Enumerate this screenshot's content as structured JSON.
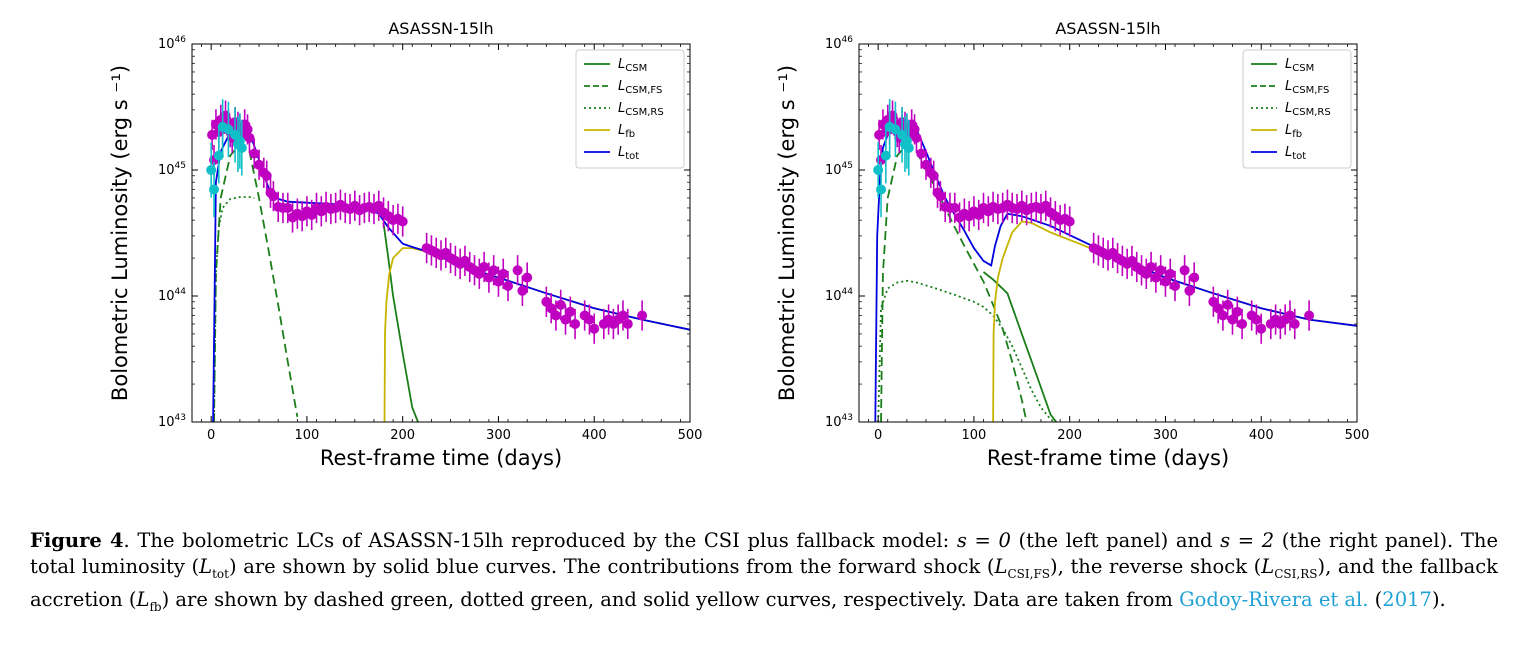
{
  "figure": {
    "chart_data": [
      {
        "type": "line",
        "title": "ASASSN-15lh",
        "xlabel": "Rest-frame time (days)",
        "ylabel": "Bolometric Luminosity (erg s ⁻¹)",
        "xlim": [
          -20,
          500
        ],
        "ylim": [
          1e+43,
          1e+46
        ],
        "yscale": "log",
        "xticks": [
          0,
          100,
          200,
          300,
          400,
          500
        ],
        "yticks": [
          1e+43,
          1e+44,
          1e+45,
          1e+46
        ],
        "ytick_labels": [
          "10^43",
          "10^44",
          "10^45",
          "10^46"
        ],
        "legend_location": "upper right",
        "legend": [
          "L_CSM",
          "L_CSM,FS",
          "L_CSM,RS",
          "L_fb",
          "L_tot"
        ],
        "series": [
          {
            "name": "L_CSM",
            "style": "solid",
            "color": "#1a7f1a",
            "x": [
              180,
              185,
              190,
              200,
              210,
              216
            ],
            "y": [
              3.8e+44,
              2e+44,
              1e+44,
              3.5e+43,
              1.3e+43,
              1e+43
            ]
          },
          {
            "name": "L_CSM,FS",
            "style": "dashed",
            "color": "#1a7f1a",
            "x": [
              3,
              5,
              10,
              20,
              30,
              40,
              50,
              60,
              70,
              80,
              90
            ],
            "y": [
              1e+43,
              1.5e+44,
              6e+44,
              1.3e+45,
              1.6e+45,
              1.4e+45,
              6e+44,
              2.3e+44,
              8.5e+43,
              3e+43,
              1.1e+43
            ]
          },
          {
            "name": "L_CSM,RS",
            "style": "dotted",
            "color": "#1a7f1a",
            "x": [
              3,
              5,
              8,
              12,
              20,
              30,
              40,
              45
            ],
            "y": [
              1e+43,
              1.5e+44,
              3.5e+44,
              5e+44,
              5.9e+44,
              6.1e+44,
              6.1e+44,
              6e+44
            ]
          },
          {
            "name": "L_fb",
            "style": "solid",
            "color": "#c8b400",
            "x": [
              181,
              181.5,
              183,
              186,
              190,
              200,
              210,
              230,
              260,
              300,
              350,
              400,
              450,
              500
            ],
            "y": [
              1e+43,
              5e+43,
              9e+43,
              1.5e+44,
              2e+44,
              2.4e+44,
              2.4e+44,
              2.2e+44,
              1.75e+44,
              1.4e+44,
              1.05e+44,
              8e+43,
              6.5e+43,
              5.4e+43
            ]
          },
          {
            "name": "L_tot",
            "style": "solid",
            "color": "#0000e0",
            "x": [
              2,
              5,
              10,
              20,
              30,
              40,
              50,
              60,
              70,
              80,
              100,
              120,
              140,
              160,
              175,
              185,
              200,
              210,
              230,
              260,
              300,
              350,
              400,
              450,
              500
            ],
            "y": [
              1e+43,
              8e+44,
              1.4e+45,
              2e+45,
              2.3e+45,
              2e+45,
              1.2e+45,
              7.2e+44,
              5.9e+44,
              5.6e+44,
              5.5e+44,
              5.4e+44,
              5.3e+44,
              5e+44,
              4.5e+44,
              3.5e+44,
              2.6e+44,
              2.45e+44,
              2.2e+44,
              1.75e+44,
              1.4e+44,
              1.05e+44,
              8e+43,
              6.5e+43,
              5.4e+43
            ]
          }
        ],
        "observations": [
          {
            "name": "magenta",
            "color": "#c000c0",
            "x": [
              1,
              3,
              5,
              8,
              10,
              12,
              15,
              18,
              20,
              22,
              25,
              28,
              30,
              32,
              35,
              38,
              40,
              45,
              50,
              55,
              58,
              62,
              65,
              70,
              75,
              80,
              85,
              90,
              95,
              100,
              105,
              110,
              115,
              120,
              125,
              130,
              135,
              140,
              145,
              150,
              155,
              160,
              165,
              170,
              175,
              180,
              185,
              190,
              195,
              200,
              225,
              230,
              235,
              240,
              245,
              250,
              255,
              260,
              265,
              270,
              275,
              280,
              285,
              290,
              295,
              300,
              305,
              310,
              320,
              325,
              330,
              350,
              355,
              360,
              365,
              370,
              375,
              380,
              390,
              395,
              400,
              410,
              415,
              420,
              425,
              430,
              435,
              450
            ],
            "y": [
              1.9e+45,
              1.2e+45,
              2.3e+45,
              2e+45,
              2.5e+45,
              2.1e+45,
              2.7e+45,
              2.3e+45,
              2e+45,
              1.8e+45,
              2.4e+45,
              2.2e+45,
              2.1e+45,
              1.9e+45,
              2.3e+45,
              2.1e+45,
              1.8e+45,
              1.35e+45,
              1.1e+45,
              9.5e+44,
              9e+44,
              6.6e+44,
              6.2e+44,
              5.1e+44,
              5e+44,
              5e+44,
              4.2e+44,
              4.5e+44,
              4.3e+44,
              4.7e+44,
              4.4e+44,
              5e+44,
              4.7e+44,
              5.1e+44,
              4.9e+44,
              5e+44,
              5.3e+44,
              5e+44,
              4.9e+44,
              5.2e+44,
              4.8e+44,
              5e+44,
              5.1e+44,
              4.9e+44,
              5.2e+44,
              4.6e+44,
              4.3e+44,
              4e+44,
              4.1e+44,
              3.9e+44,
              2.4e+44,
              2.3e+44,
              2.2e+44,
              2.1e+44,
              2.2e+44,
              2e+44,
              1.9e+44,
              1.8e+44,
              1.9e+44,
              1.7e+44,
              1.6e+44,
              1.5e+44,
              1.7e+44,
              1.4e+44,
              1.6e+44,
              1.3e+44,
              1.5e+44,
              1.2e+44,
              1.6e+44,
              1.1e+44,
              1.4e+44,
              9e+43,
              8e+43,
              7e+43,
              8.5e+43,
              6.5e+43,
              7.5e+43,
              6e+43,
              7e+43,
              6.5e+43,
              5.5e+43,
              6e+43,
              6.5e+43,
              6e+43,
              6.5e+43,
              7e+43,
              6e+43,
              7e+43
            ]
          },
          {
            "name": "cyan",
            "color": "#10c0c8",
            "x": [
              0,
              3,
              8,
              12,
              18,
              25,
              28,
              30,
              32
            ],
            "y": [
              1e+45,
              7e+44,
              1.3e+45,
              2.2e+45,
              2.1e+45,
              1.9e+45,
              1.6e+45,
              1.7e+45,
              1.5e+45
            ]
          }
        ]
      },
      {
        "type": "line",
        "title": "ASASSN-15lh",
        "xlabel": "Rest-frame time (days)",
        "ylabel": "Bolometric Luminosity (erg s ⁻¹)",
        "xlim": [
          -20,
          500
        ],
        "ylim": [
          1e+43,
          1e+46
        ],
        "yscale": "log",
        "xticks": [
          0,
          100,
          200,
          300,
          400,
          500
        ],
        "yticks": [
          1e+43,
          1e+44,
          1e+45,
          1e+46
        ],
        "ytick_labels": [
          "10^43",
          "10^44",
          "10^45",
          "10^46"
        ],
        "legend_location": "upper right",
        "legend": [
          "L_CSM",
          "L_CSM,FS",
          "L_CSM,RS",
          "L_fb",
          "L_tot"
        ],
        "series": [
          {
            "name": "L_CSM",
            "style": "solid",
            "color": "#1a7f1a",
            "x": [
              110,
              120,
              135,
              150,
              165,
              180,
              186
            ],
            "y": [
              1.55e+44,
              1.35e+44,
              1.05e+44,
              5e+43,
              2.4e+43,
              1.15e+43,
              1e+43
            ]
          },
          {
            "name": "L_CSM,FS",
            "style": "dashed",
            "color": "#1a7f1a",
            "x": [
              3,
              5,
              10,
              20,
              30,
              40,
              50,
              60,
              70,
              80,
              90,
              100,
              110,
              120,
              130,
              140,
              150,
              155
            ],
            "y": [
              1e+43,
              1.5e+44,
              6e+44,
              1.3e+45,
              1.6e+45,
              1.4e+45,
              1e+45,
              7.2e+44,
              5e+44,
              3.5e+44,
              2.5e+44,
              1.8e+44,
              1.3e+44,
              8.5e+43,
              5.5e+43,
              3e+43,
              1.5e+43,
              1e+43
            ]
          },
          {
            "name": "L_CSM,RS",
            "style": "dotted",
            "color": "#1a7f1a",
            "x": [
              0,
              3,
              10,
              20,
              30,
              40,
              60,
              80,
              100,
              110,
              120,
              130,
              140,
              150,
              160,
              170,
              180,
              185
            ],
            "y": [
              1e+43,
              8e+43,
              1.15e+44,
              1.28e+44,
              1.32e+44,
              1.28e+44,
              1.15e+44,
              1.02e+44,
              9e+43,
              8.2e+43,
              7e+43,
              5.5e+43,
              4e+43,
              2.7e+43,
              1.8e+43,
              1.3e+43,
              1.05e+43,
              1e+43
            ]
          },
          {
            "name": "L_fb",
            "style": "solid",
            "color": "#c8b400",
            "x": [
              120,
              120.5,
              122,
              125,
              130,
              140,
              150,
              160,
              180,
              210,
              250,
              300,
              350,
              400,
              450,
              500
            ],
            "y": [
              1e+43,
              5e+43,
              9e+43,
              1.4e+44,
              2e+44,
              3.2e+44,
              3.9e+44,
              3.8e+44,
              3.2e+44,
              2.6e+44,
              1.95e+44,
              1.4e+44,
              1.05e+44,
              8e+43,
              6.5e+43,
              5.8e+43
            ]
          },
          {
            "name": "L_tot",
            "style": "solid",
            "color": "#0000e0",
            "x": [
              -3,
              -1,
              2,
              5,
              10,
              20,
              30,
              40,
              50,
              60,
              70,
              80,
              90,
              100,
              110,
              118,
              122,
              128,
              135,
              150,
              180,
              210,
              250,
              300,
              350,
              400,
              450,
              500
            ],
            "y": [
              1e+43,
              3e+44,
              9e+44,
              1.5e+45,
              1.9e+45,
              2.3e+45,
              2.4e+45,
              2.1e+45,
              1.4e+45,
              9e+44,
              6e+44,
              4.4e+44,
              3.3e+44,
              2.4e+44,
              1.9e+44,
              1.75e+44,
              2.5e+44,
              3.6e+44,
              4.5e+44,
              4.3e+44,
              3.6e+44,
              2.8e+44,
              2e+44,
              1.4e+44,
              1.05e+44,
              8e+43,
              6.5e+43,
              5.8e+43
            ]
          }
        ],
        "observations": [
          {
            "name": "magenta",
            "color": "#c000c0",
            "x": [
              1,
              3,
              5,
              8,
              10,
              12,
              15,
              18,
              20,
              22,
              25,
              28,
              30,
              32,
              35,
              38,
              40,
              45,
              50,
              55,
              58,
              62,
              65,
              70,
              75,
              80,
              85,
              90,
              95,
              100,
              105,
              110,
              115,
              120,
              125,
              130,
              135,
              140,
              145,
              150,
              155,
              160,
              165,
              170,
              175,
              180,
              185,
              190,
              195,
              200,
              225,
              230,
              235,
              240,
              245,
              250,
              255,
              260,
              265,
              270,
              275,
              280,
              285,
              290,
              295,
              300,
              305,
              310,
              320,
              325,
              330,
              350,
              355,
              360,
              365,
              370,
              375,
              380,
              390,
              395,
              400,
              410,
              415,
              420,
              425,
              430,
              435,
              450
            ],
            "y": [
              1.9e+45,
              1.2e+45,
              2.3e+45,
              2e+45,
              2.5e+45,
              2.1e+45,
              2.7e+45,
              2.3e+45,
              2e+45,
              1.8e+45,
              2.4e+45,
              2.2e+45,
              2.1e+45,
              1.9e+45,
              2.3e+45,
              2.1e+45,
              1.8e+45,
              1.35e+45,
              1.1e+45,
              9.5e+44,
              9e+44,
              6.6e+44,
              6.2e+44,
              5.1e+44,
              5e+44,
              5e+44,
              4.2e+44,
              4.5e+44,
              4.3e+44,
              4.7e+44,
              4.4e+44,
              5e+44,
              4.7e+44,
              5.1e+44,
              4.9e+44,
              5e+44,
              5.3e+44,
              5e+44,
              4.9e+44,
              5.2e+44,
              4.8e+44,
              5e+44,
              5.1e+44,
              4.9e+44,
              5.2e+44,
              4.6e+44,
              4.3e+44,
              4e+44,
              4.1e+44,
              3.9e+44,
              2.4e+44,
              2.3e+44,
              2.2e+44,
              2.1e+44,
              2.2e+44,
              2e+44,
              1.9e+44,
              1.8e+44,
              1.9e+44,
              1.7e+44,
              1.6e+44,
              1.5e+44,
              1.7e+44,
              1.4e+44,
              1.6e+44,
              1.3e+44,
              1.5e+44,
              1.2e+44,
              1.6e+44,
              1.1e+44,
              1.4e+44,
              9e+43,
              8e+43,
              7e+43,
              8.5e+43,
              6.5e+43,
              7.5e+43,
              6e+43,
              7e+43,
              6.5e+43,
              5.5e+43,
              6e+43,
              6.5e+43,
              6e+43,
              6.5e+43,
              7e+43,
              6e+43,
              7e+43
            ]
          },
          {
            "name": "cyan",
            "color": "#10c0c8",
            "x": [
              0,
              3,
              8,
              12,
              18,
              25,
              28,
              30,
              32
            ],
            "y": [
              1e+45,
              7e+44,
              1.3e+45,
              2.2e+45,
              2.1e+45,
              1.9e+45,
              1.6e+45,
              1.7e+45,
              1.5e+45
            ]
          }
        ]
      }
    ]
  },
  "caption": {
    "label": "Figure 4",
    "text_1": ". The bolometric LCs of ASASSN-15lh reproduced by the CSI plus fallback model: ",
    "eq_s0": "s = 0",
    "text_2": " (the left panel) and ",
    "eq_s2": "s = 2",
    "text_3": " (the right panel). The total luminosity (",
    "ltot": "L",
    "ltot_sub": "tot",
    "text_4": ") are shown by solid blue curves. The contributions from the forward shock (",
    "lfs": "L",
    "lfs_sub": "CSI,FS",
    "text_5": "), the reverse shock (",
    "lrs": "L",
    "lrs_sub": "CSI,RS",
    "text_6": "), and the fallback accretion (",
    "lfb": "L",
    "lfb_sub": "fb",
    "text_7": ") are shown by dashed green, dotted green, and solid yellow curves, respectively. Data are taken from ",
    "cite_author": "Godoy-Rivera et al.",
    "text_8": " (",
    "cite_year": "2017",
    "text_9": ")."
  }
}
